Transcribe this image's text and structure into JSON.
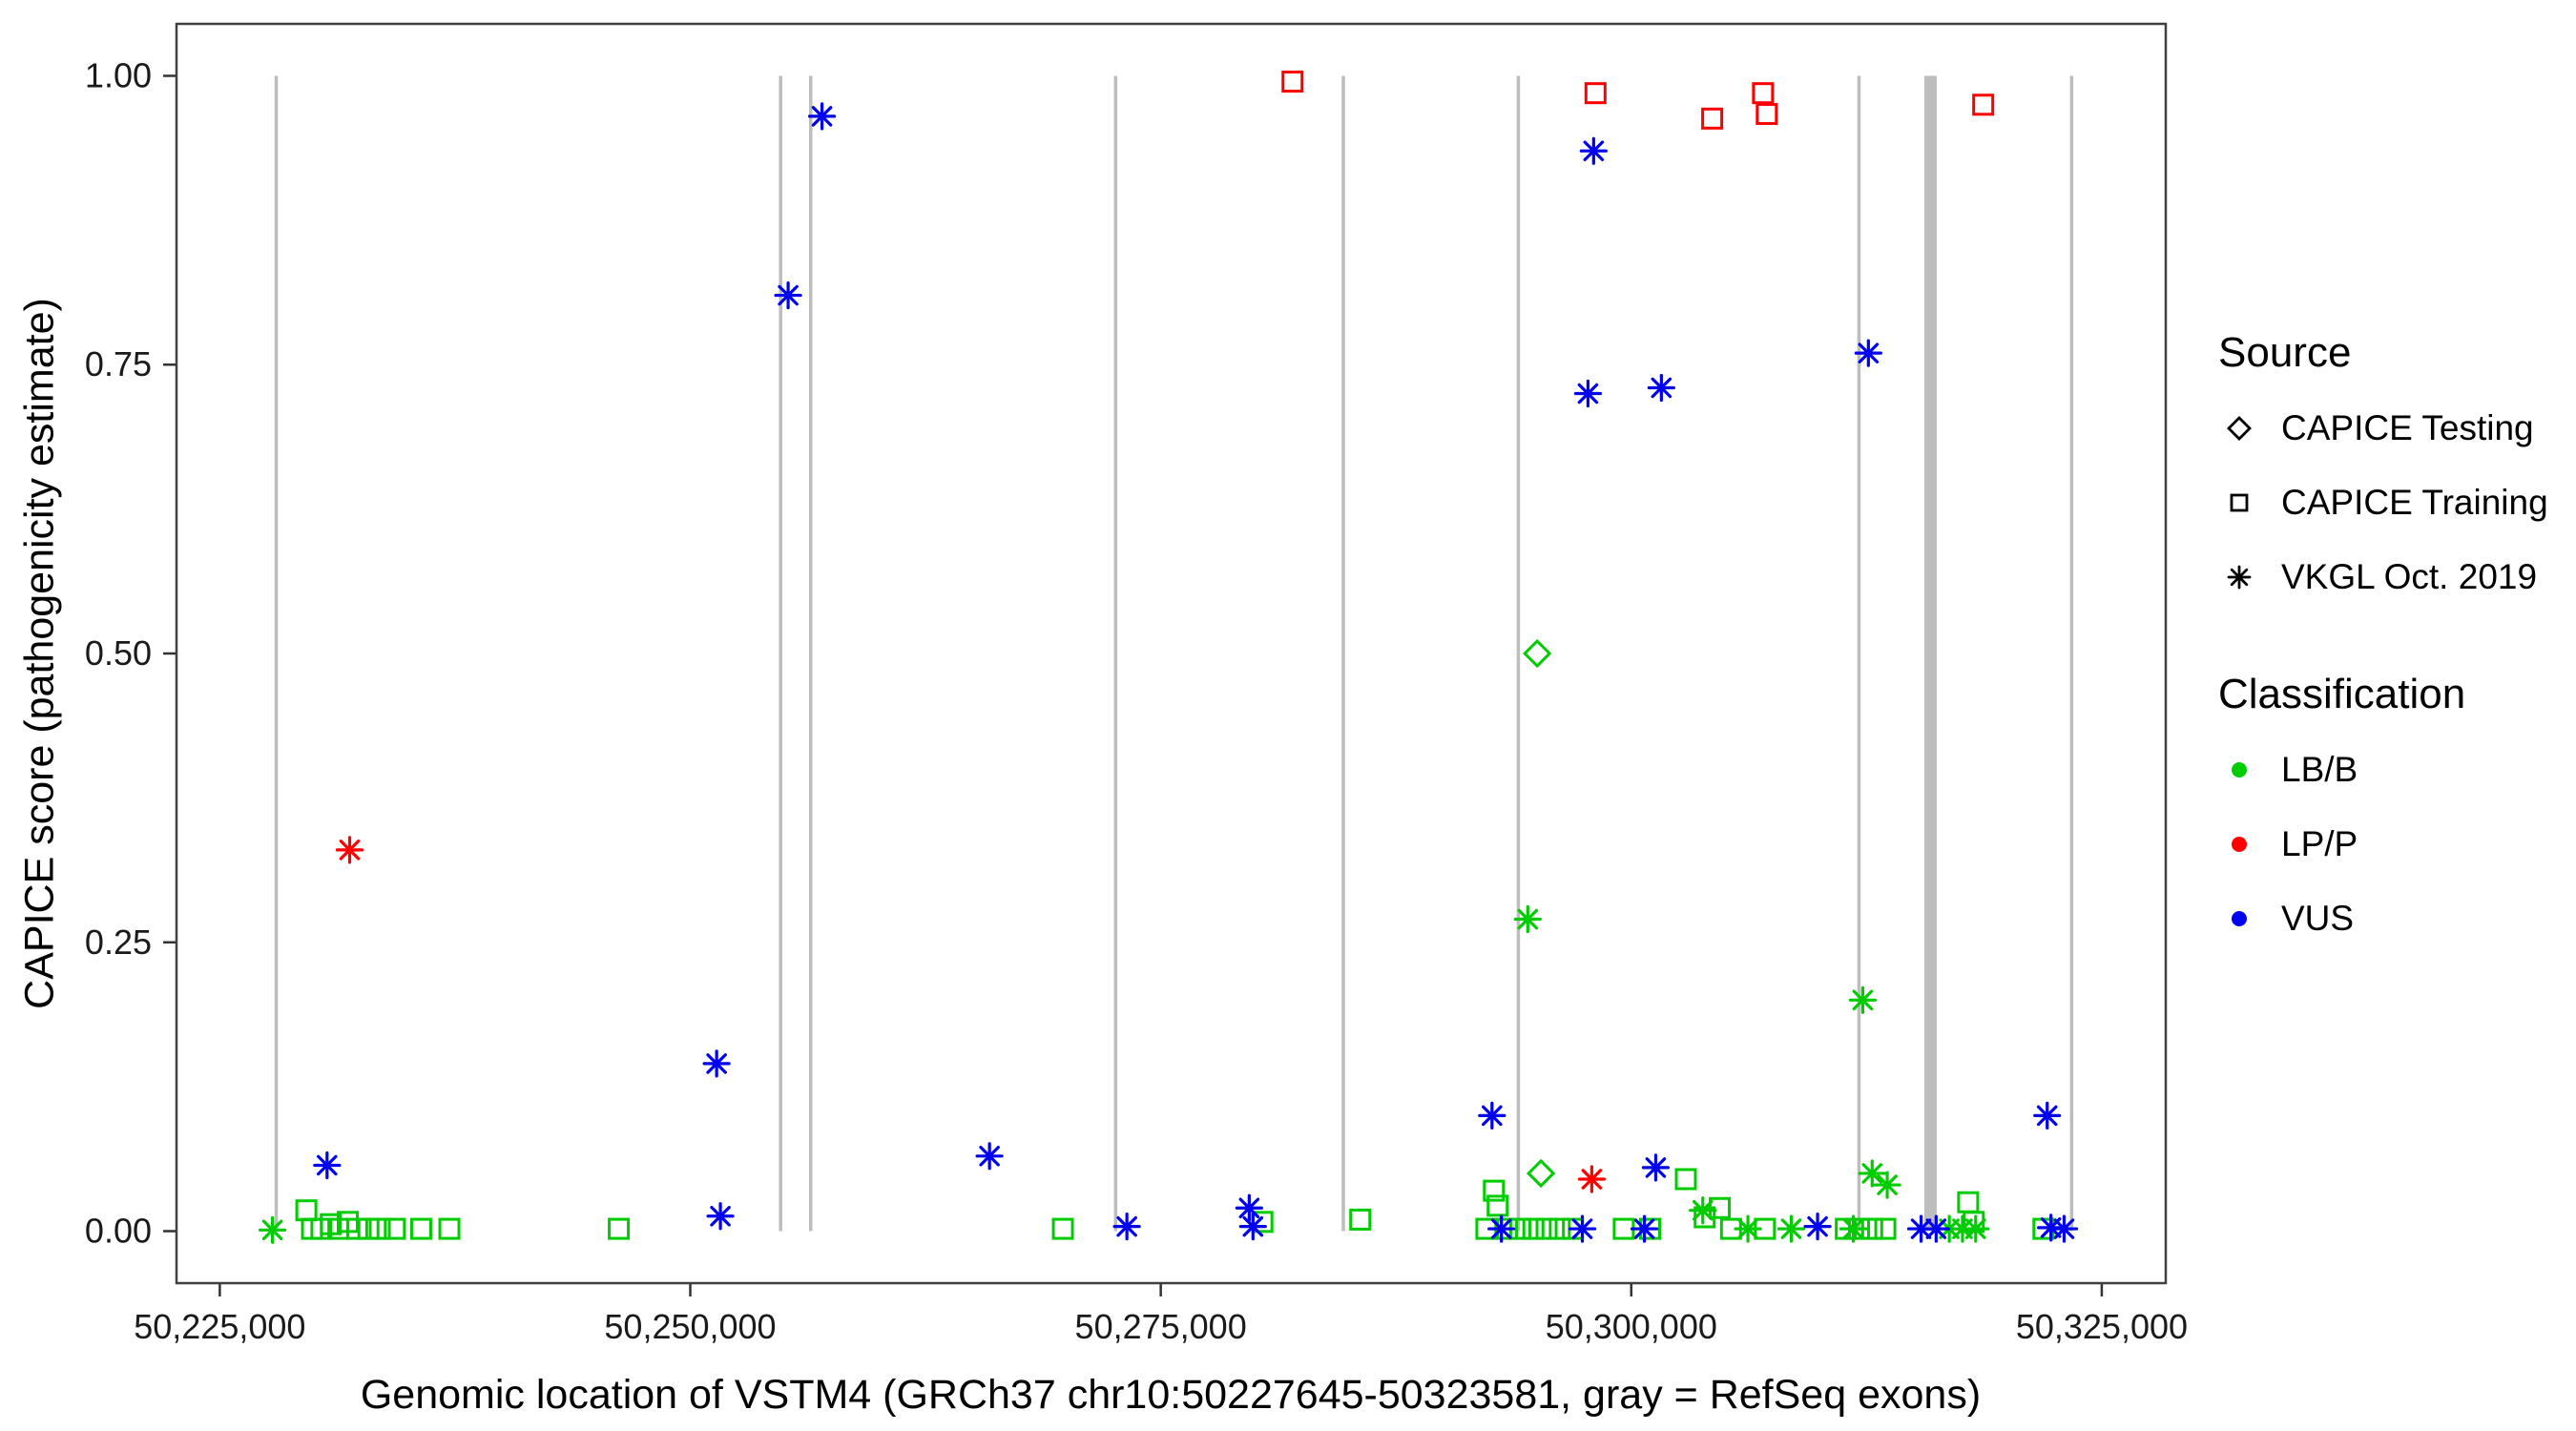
{
  "figure": {
    "x_title": "Genomic location of VSTM4 (GRCh37 chr10:50227645-50323581, gray = RefSeq exons)",
    "y_title": "CAPICE score (pathogenicity estimate)"
  },
  "legend": {
    "source": {
      "title": "Source",
      "items": [
        {
          "label": "CAPICE Testing",
          "shape": "diamond",
          "color": "#000000"
        },
        {
          "label": "CAPICE Training",
          "shape": "square",
          "color": "#000000"
        },
        {
          "label": "VKGL Oct. 2019",
          "shape": "asterisk",
          "color": "#000000"
        }
      ]
    },
    "classification": {
      "title": "Classification",
      "items": [
        {
          "label": "LB/B",
          "shape": "circle",
          "color": "#00CC00"
        },
        {
          "label": "LP/P",
          "shape": "circle",
          "color": "#FF0000"
        },
        {
          "label": "VUS",
          "shape": "circle",
          "color": "#0000EE"
        }
      ]
    }
  },
  "chart_data": {
    "type": "scatter",
    "title": "",
    "xlabel": "Genomic location of VSTM4 (GRCh37 chr10:50227645-50323581, gray = RefSeq exons)",
    "ylabel": "CAPICE score (pathogenicity estimate)",
    "xlim": [
      50222700,
      50328400
    ],
    "ylim": [
      -0.045,
      1.045
    ],
    "grid": false,
    "legend_position": "right",
    "x_ticks": [
      {
        "value": 50225000,
        "label": "50,225,000"
      },
      {
        "value": 50250000,
        "label": "50,250,000"
      },
      {
        "value": 50275000,
        "label": "50,275,000"
      },
      {
        "value": 50300000,
        "label": "50,300,000"
      },
      {
        "value": 50325000,
        "label": "50,325,000"
      }
    ],
    "y_ticks": [
      {
        "value": 0.0,
        "label": "0.00"
      },
      {
        "value": 0.25,
        "label": "0.25"
      },
      {
        "value": 0.5,
        "label": "0.50"
      },
      {
        "value": 0.75,
        "label": "0.75"
      },
      {
        "value": 1.0,
        "label": "1.00"
      }
    ],
    "exon_color": "#BDBDBD",
    "exons": [
      {
        "x": 50228000,
        "w": 3.5
      },
      {
        "x": 50254800,
        "w": 3.5
      },
      {
        "x": 50256400,
        "w": 3.5
      },
      {
        "x": 50272600,
        "w": 3.5
      },
      {
        "x": 50284700,
        "w": 3.5
      },
      {
        "x": 50294000,
        "w": 3.5
      },
      {
        "x": 50312100,
        "w": 3.5
      },
      {
        "x": 50315900,
        "w": 13
      },
      {
        "x": 50323400,
        "w": 3.5
      }
    ],
    "series": [
      {
        "name": "CAPICE Testing / LB/B",
        "source": "CAPICE Testing",
        "classification": "LB/B",
        "shape": "diamond",
        "color": "#00CC00",
        "points": [
          [
            50295000,
            0.5
          ],
          [
            50295200,
            0.05
          ]
        ]
      },
      {
        "name": "CAPICE Training / LB/B",
        "source": "CAPICE Training",
        "classification": "LB/B",
        "shape": "square",
        "color": "#00CC00",
        "points": [
          [
            50229600,
            0.018
          ],
          [
            50229900,
            0.002
          ],
          [
            50230400,
            0.002
          ],
          [
            50230900,
            0.006
          ],
          [
            50231300,
            0.002
          ],
          [
            50231800,
            0.008
          ],
          [
            50232300,
            0.002
          ],
          [
            50232900,
            0.002
          ],
          [
            50233500,
            0.002
          ],
          [
            50234300,
            0.002
          ],
          [
            50235700,
            0.002
          ],
          [
            50237200,
            0.002
          ],
          [
            50246200,
            0.002
          ],
          [
            50269800,
            0.002
          ],
          [
            50280400,
            0.008
          ],
          [
            50285600,
            0.01
          ],
          [
            50292300,
            0.002
          ],
          [
            50292700,
            0.035
          ],
          [
            50292900,
            0.022
          ],
          [
            50293400,
            0.002
          ],
          [
            50294100,
            0.002
          ],
          [
            50294800,
            0.002
          ],
          [
            50295500,
            0.002
          ],
          [
            50296200,
            0.002
          ],
          [
            50296900,
            0.002
          ],
          [
            50299600,
            0.002
          ],
          [
            50301000,
            0.002
          ],
          [
            50302900,
            0.045
          ],
          [
            50303900,
            0.012
          ],
          [
            50304700,
            0.02
          ],
          [
            50305300,
            0.002
          ],
          [
            50307100,
            0.002
          ],
          [
            50311400,
            0.002
          ],
          [
            50312100,
            0.002
          ],
          [
            50312800,
            0.002
          ],
          [
            50313500,
            0.002
          ],
          [
            50317900,
            0.025
          ],
          [
            50318200,
            0.008
          ],
          [
            50321900,
            0.002
          ]
        ]
      },
      {
        "name": "CAPICE Training / LP/P",
        "source": "CAPICE Training",
        "classification": "LP/P",
        "shape": "square",
        "color": "#FF0000",
        "points": [
          [
            50282000,
            0.995
          ],
          [
            50298100,
            0.985
          ],
          [
            50304300,
            0.963
          ],
          [
            50307000,
            0.985
          ],
          [
            50307200,
            0.967
          ],
          [
            50318700,
            0.975
          ]
        ]
      },
      {
        "name": "VKGL Oct. 2019 / LB/B",
        "source": "VKGL Oct. 2019",
        "classification": "LB/B",
        "shape": "asterisk",
        "color": "#00CC00",
        "points": [
          [
            50227800,
            0.001
          ],
          [
            50294500,
            0.27
          ],
          [
            50303800,
            0.018
          ],
          [
            50306200,
            0.002
          ],
          [
            50308500,
            0.002
          ],
          [
            50311800,
            0.002
          ],
          [
            50312300,
            0.2
          ],
          [
            50312800,
            0.05
          ],
          [
            50313600,
            0.04
          ],
          [
            50316900,
            0.002
          ],
          [
            50317600,
            0.002
          ],
          [
            50318300,
            0.002
          ]
        ]
      },
      {
        "name": "VKGL Oct. 2019 / LP/P",
        "source": "VKGL Oct. 2019",
        "classification": "LP/P",
        "shape": "asterisk",
        "color": "#FF0000",
        "points": [
          [
            50231900,
            0.33
          ],
          [
            50297900,
            0.045
          ]
        ]
      },
      {
        "name": "VKGL Oct. 2019 / VUS",
        "source": "VKGL Oct. 2019",
        "classification": "VUS",
        "shape": "asterisk",
        "color": "#0000EE",
        "points": [
          [
            50230700,
            0.057
          ],
          [
            50251400,
            0.145
          ],
          [
            50251600,
            0.013
          ],
          [
            50255200,
            0.81
          ],
          [
            50257000,
            0.965
          ],
          [
            50265900,
            0.065
          ],
          [
            50273200,
            0.004
          ],
          [
            50279700,
            0.02
          ],
          [
            50279900,
            0.004
          ],
          [
            50292600,
            0.1
          ],
          [
            50293100,
            0.002
          ],
          [
            50297400,
            0.002
          ],
          [
            50297700,
            0.725
          ],
          [
            50298000,
            0.935
          ],
          [
            50300700,
            0.002
          ],
          [
            50301300,
            0.055
          ],
          [
            50301600,
            0.73
          ],
          [
            50309900,
            0.004
          ],
          [
            50312600,
            0.76
          ],
          [
            50315400,
            0.002
          ],
          [
            50316200,
            0.002
          ],
          [
            50322100,
            0.1
          ],
          [
            50322300,
            0.003
          ],
          [
            50323000,
            0.002
          ]
        ]
      }
    ]
  }
}
